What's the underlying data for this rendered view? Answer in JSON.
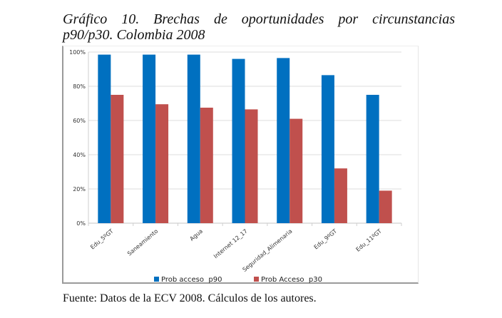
{
  "figure": {
    "title_line1": "Gráfico 10. Brechas de oportunidades por circunstancias",
    "title_line2": "p90/p30. Colombia 2008",
    "source": "Fuente: Datos de la ECV 2008. Cálculos de los autores."
  },
  "chart_data": {
    "type": "bar",
    "title": "Gráfico 10. Brechas de oportunidades por circunstancias p90/p30. Colombia 2008",
    "xlabel": "",
    "ylabel": "",
    "categories": [
      "Edu_5ºGT",
      "Saneamiento",
      "Agua",
      "Internet 12_17",
      "Seguridad_Alimenaria",
      "Edu_9ºGT",
      "Edu_11ºGT"
    ],
    "series": [
      {
        "name": "Prob acceso  p90",
        "color": "#0070c0",
        "values": [
          98.5,
          98.5,
          98.5,
          96,
          96.5,
          86.5,
          75
        ]
      },
      {
        "name": "Prob Acceso  p30",
        "color": "#c0504d",
        "values": [
          75,
          69.5,
          67.5,
          66.5,
          61,
          32,
          19
        ]
      }
    ],
    "ylim": [
      0,
      100
    ],
    "yticks": [
      "0%",
      "20%",
      "40%",
      "60%",
      "80%",
      "100%"
    ],
    "ytick_values": [
      0,
      20,
      40,
      60,
      80,
      100
    ],
    "grid": true,
    "legend_position": "bottom"
  }
}
